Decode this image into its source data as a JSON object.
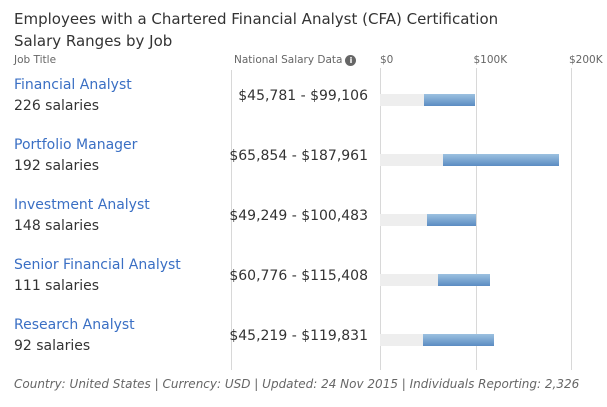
{
  "chart_data": {
    "type": "bar",
    "title": "Employees with a Chartered Financial Analyst (CFA) Certification",
    "subtitle": "Salary Ranges by Job",
    "column_headers": {
      "job": "Job Title",
      "salary": "National Salary Data"
    },
    "xlim": [
      0,
      200000
    ],
    "ticks": [
      {
        "value": 0,
        "label": "$0"
      },
      {
        "value": 100000,
        "label": "$100K"
      },
      {
        "value": 200000,
        "label": "$200K"
      }
    ],
    "rows": [
      {
        "job": "Financial Analyst",
        "count": "226 salaries",
        "range_label": "$45,781 - $99,106",
        "min": 45781,
        "max": 99106
      },
      {
        "job": "Portfolio Manager",
        "count": "192 salaries",
        "range_label": "$65,854 - $187,961",
        "min": 65854,
        "max": 187961
      },
      {
        "job": "Investment Analyst",
        "count": "148 salaries",
        "range_label": "$49,249 - $100,483",
        "min": 49249,
        "max": 100483
      },
      {
        "job": "Senior Financial Analyst",
        "count": "111 salaries",
        "range_label": "$60,776 - $115,408",
        "min": 60776,
        "max": 115408
      },
      {
        "job": "Research Analyst",
        "count": "92 salaries",
        "range_label": "$45,219 - $119,831",
        "min": 45219,
        "max": 119831
      }
    ],
    "colors": {
      "bar_top": "#9cc1e0",
      "bar_bottom": "#5b8cc2",
      "track": "#eeeeee",
      "link": "#3a6fc4"
    }
  },
  "icons": {
    "info": "info-icon"
  },
  "footer": "Country: United States | Currency: USD | Updated: 24 Nov 2015 | Individuals Reporting: 2,326"
}
